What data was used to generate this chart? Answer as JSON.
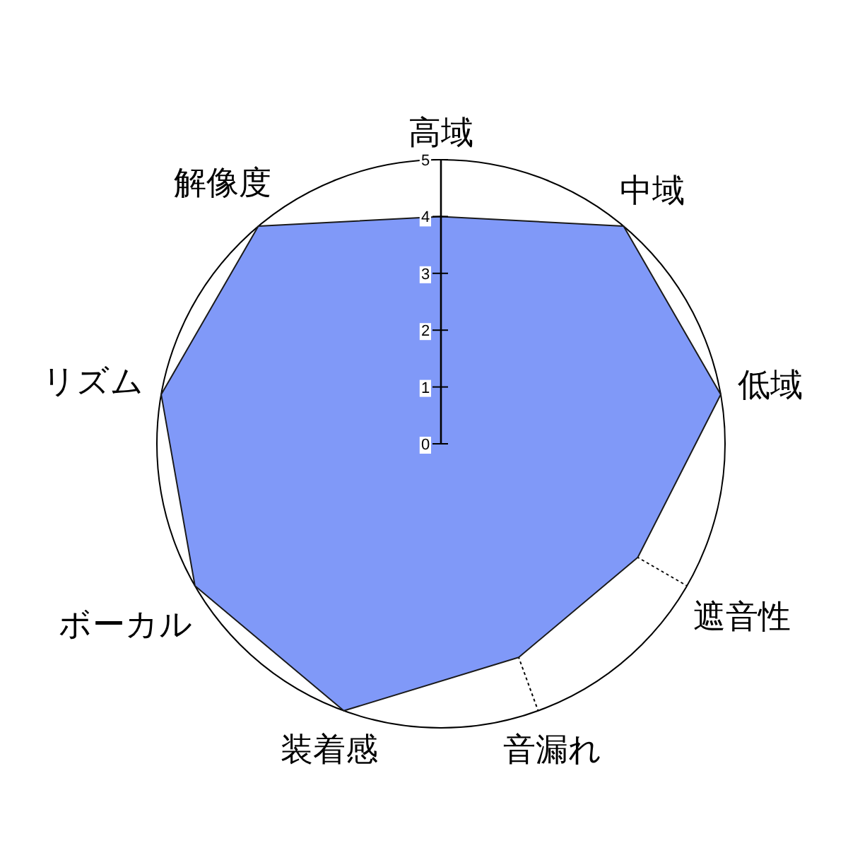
{
  "chart_data": {
    "type": "radar",
    "categories": [
      "高域",
      "中域",
      "低域",
      "遮音性",
      "音漏れ",
      "装着感",
      "ボーカル",
      "リズム",
      "解像度"
    ],
    "series": [
      {
        "color": "#8099f8",
        "values": [
          4,
          5,
          5,
          4,
          4,
          5,
          5,
          5,
          5
        ]
      }
    ],
    "ylim": [
      0,
      5
    ],
    "yticks": [
      0,
      1,
      2,
      3,
      4,
      5
    ]
  }
}
